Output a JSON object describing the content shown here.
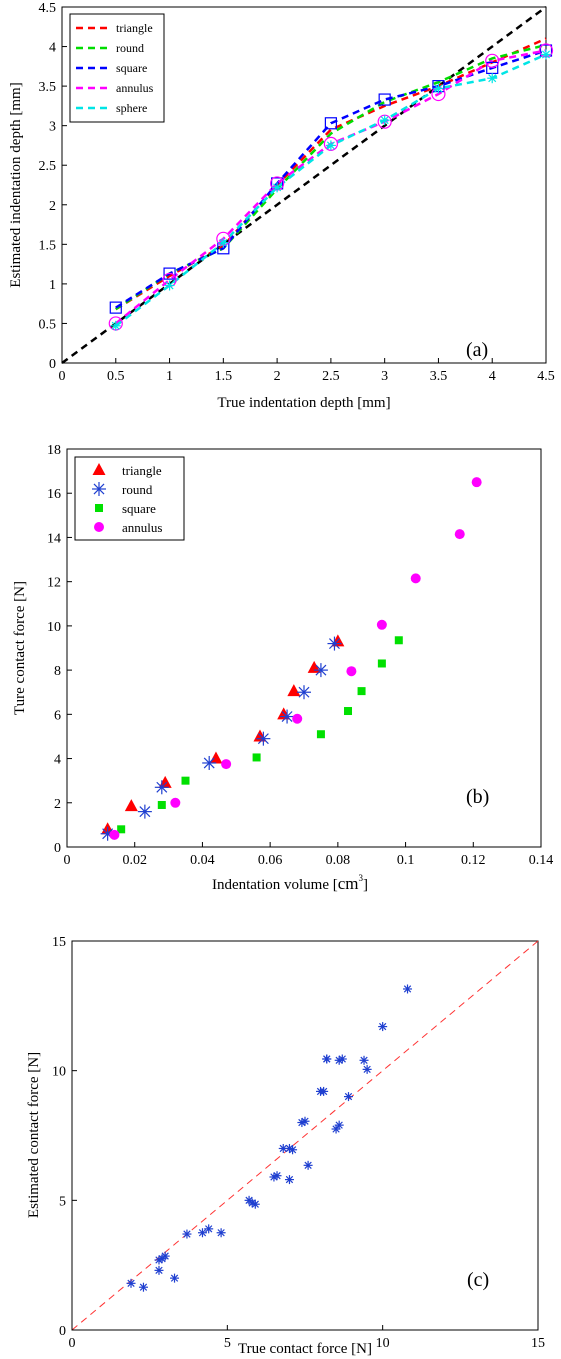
{
  "chart_data": [
    {
      "type": "line",
      "panel_label": "(a)",
      "xlabel": "True indentation depth [mm]",
      "ylabel": "Estimated indentation depth [mm]",
      "xlim": [
        0,
        4.5
      ],
      "ylim": [
        0,
        4.5
      ],
      "xticks": [
        "0",
        "0.5",
        "1",
        "1.5",
        "2",
        "2.5",
        "3",
        "3.5",
        "4",
        "4.5"
      ],
      "yticks": [
        "0",
        "0.5",
        "1",
        "1.5",
        "2",
        "2.5",
        "3",
        "3.5",
        "4",
        "4.5"
      ],
      "legend_position": "top-left",
      "x": [
        0.5,
        1,
        1.5,
        2,
        2.5,
        3,
        3.5,
        4,
        4.5
      ],
      "series": [
        {
          "name": "triangle",
          "color": "#ff0000",
          "values": [
            0.68,
            1.1,
            1.48,
            2.25,
            2.95,
            3.25,
            3.5,
            3.8,
            4.1
          ]
        },
        {
          "name": "round",
          "color": "#00dd00",
          "values": [
            0.68,
            1.13,
            1.45,
            2.2,
            2.9,
            3.3,
            3.55,
            3.85,
            4.02
          ]
        },
        {
          "name": "square",
          "color": "#0000ff",
          "values": [
            0.7,
            1.13,
            1.45,
            2.27,
            3.03,
            3.33,
            3.5,
            3.73,
            3.95
          ]
        },
        {
          "name": "annulus",
          "color": "#ff00ff",
          "values": [
            0.5,
            1.05,
            1.57,
            2.27,
            2.77,
            3.05,
            3.4,
            3.82,
            3.95
          ]
        },
        {
          "name": "sphere",
          "color": "#00e5e5",
          "values": [
            0.47,
            0.98,
            1.52,
            2.22,
            2.75,
            3.07,
            3.47,
            3.6,
            3.9
          ]
        }
      ],
      "square_markers": [
        0.7,
        1.13,
        1.45,
        2.27,
        3.03,
        3.33,
        3.5,
        3.73,
        3.95
      ],
      "circle_markers": [
        0.5,
        1.05,
        1.57,
        2.27,
        2.77,
        3.05,
        3.4,
        3.82,
        3.95
      ],
      "star_markers": [
        0.47,
        0.98,
        1.52,
        2.22,
        2.75,
        3.07,
        3.47,
        3.6,
        3.9
      ],
      "reference_line": {
        "from": [
          0,
          0
        ],
        "to": [
          4.5,
          4.5
        ],
        "color": "#000000",
        "style": "dashed"
      }
    },
    {
      "type": "scatter",
      "panel_label": "(b)",
      "xlabel": "Indentation volume [",
      "xlabel_unit": "cm",
      "xlabel_sup": "3",
      "xlabel_close": "]",
      "ylabel": "Ture contact force [N]",
      "xlim": [
        0,
        0.14
      ],
      "ylim": [
        0,
        18
      ],
      "xticks": [
        "0",
        "0.02",
        "0.04",
        "0.06",
        "0.08",
        "0.1",
        "0.12",
        "0.14"
      ],
      "yticks": [
        "0",
        "2",
        "4",
        "6",
        "8",
        "10",
        "12",
        "14",
        "16",
        "18"
      ],
      "legend_position": "top-left",
      "series": [
        {
          "name": "triangle",
          "marker": "triangle",
          "color": "#ff0000",
          "x": [
            0.012,
            0.019,
            0.029,
            0.044,
            0.057,
            0.064,
            0.067,
            0.073,
            0.08
          ],
          "y": [
            0.8,
            1.85,
            2.9,
            4.0,
            5.0,
            6.0,
            7.05,
            8.1,
            9.3
          ]
        },
        {
          "name": "round",
          "marker": "star",
          "color": "#1f3fd0",
          "x": [
            0.012,
            0.023,
            0.028,
            0.042,
            0.058,
            0.065,
            0.07,
            0.075,
            0.079
          ],
          "y": [
            0.6,
            1.6,
            2.7,
            3.8,
            4.9,
            5.9,
            7.0,
            8.0,
            9.2
          ]
        },
        {
          "name": "square",
          "marker": "square",
          "color": "#00e000",
          "x": [
            0.016,
            0.028,
            0.035,
            0.056,
            0.075,
            0.083,
            0.087,
            0.093,
            0.098
          ],
          "y": [
            0.8,
            1.9,
            3.0,
            4.05,
            5.1,
            6.15,
            7.05,
            8.3,
            9.35
          ]
        },
        {
          "name": "annulus",
          "marker": "circle",
          "color": "#ff00ff",
          "x": [
            0.014,
            0.032,
            0.047,
            0.068,
            0.084,
            0.093,
            0.103,
            0.116,
            0.121
          ],
          "y": [
            0.55,
            2.0,
            3.75,
            5.8,
            7.95,
            10.05,
            12.15,
            14.15,
            16.5
          ]
        }
      ]
    },
    {
      "type": "scatter",
      "panel_label": "(c)",
      "xlabel": "True contact force [N]",
      "ylabel": "Estimated contact force [N]",
      "xlim": [
        0,
        15
      ],
      "ylim": [
        0,
        15
      ],
      "xticks": [
        "0",
        "5",
        "10",
        "15"
      ],
      "yticks": [
        "0",
        "5",
        "10",
        "15"
      ],
      "marker_color": "#1f3fd0",
      "reference_line": {
        "from": [
          0,
          0
        ],
        "to": [
          15,
          15
        ],
        "color": "#ff3333",
        "style": "dashed"
      },
      "x": [
        1.9,
        2.3,
        2.8,
        2.9,
        3.0,
        2.8,
        3.3,
        3.7,
        4.2,
        4.4,
        4.8,
        5.7,
        5.8,
        5.9,
        6.5,
        6.6,
        6.8,
        7.0,
        7.1,
        7.0,
        7.4,
        7.5,
        7.6,
        8.0,
        8.1,
        8.2,
        8.5,
        8.6,
        8.7,
        8.9,
        8.2,
        8.6,
        9.4,
        9.5,
        10.0,
        10.8
      ],
      "y": [
        1.8,
        1.65,
        2.3,
        2.75,
        2.85,
        2.7,
        2.0,
        3.7,
        3.75,
        3.9,
        3.75,
        5.0,
        4.9,
        4.85,
        5.9,
        5.95,
        7.0,
        5.8,
        6.95,
        7.0,
        8.0,
        8.05,
        6.35,
        9.2,
        9.2,
        10.45,
        7.75,
        7.9,
        10.45,
        9.0,
        10.45,
        10.4,
        10.4,
        10.05,
        11.7,
        13.15
      ]
    }
  ]
}
